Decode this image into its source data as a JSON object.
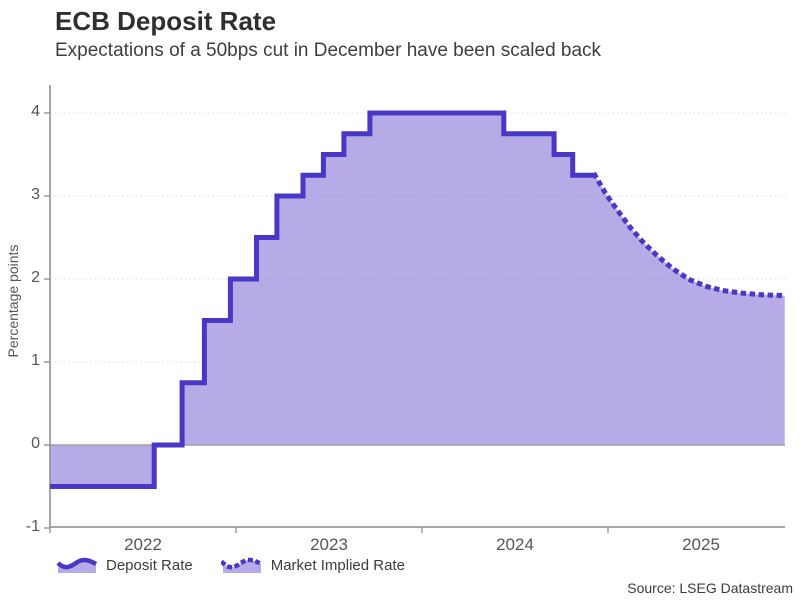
{
  "chart_data": {
    "type": "area",
    "title": "ECB Deposit Rate",
    "subtitle": "Expectations of a 50bps cut in December have been scaled back",
    "ylabel": "Percentage points",
    "ylim": [
      -1,
      4
    ],
    "x_range_years": [
      2022.0,
      2025.95
    ],
    "grid": "horizontal-dotted",
    "legend_position": "bottom-left",
    "y_ticks": [
      {
        "value": -1,
        "label": "-1"
      },
      {
        "value": 0,
        "label": "0"
      },
      {
        "value": 1,
        "label": "1"
      },
      {
        "value": 2,
        "label": "2"
      },
      {
        "value": 3,
        "label": "3"
      },
      {
        "value": 4,
        "label": "4"
      }
    ],
    "x_ticks": [
      {
        "year": 2022,
        "label": "2022"
      },
      {
        "year": 2023,
        "label": "2023"
      },
      {
        "year": 2024,
        "label": "2024"
      },
      {
        "year": 2025,
        "label": "2025"
      }
    ],
    "series": [
      {
        "name": "Deposit Rate",
        "style": "solid-step",
        "points_year_rate": [
          [
            2022.0,
            -0.5
          ],
          [
            2022.56,
            0.0
          ],
          [
            2022.71,
            0.75
          ],
          [
            2022.83,
            1.5
          ],
          [
            2022.97,
            2.0
          ],
          [
            2023.11,
            2.5
          ],
          [
            2023.22,
            3.0
          ],
          [
            2023.36,
            3.25
          ],
          [
            2023.47,
            3.5
          ],
          [
            2023.58,
            3.75
          ],
          [
            2023.72,
            4.0
          ],
          [
            2024.44,
            3.75
          ],
          [
            2024.71,
            3.5
          ],
          [
            2024.81,
            3.25
          ]
        ],
        "end_year": 2024.93
      },
      {
        "name": "Market Implied Rate",
        "style": "dotted",
        "points_year_rate": [
          [
            2024.93,
            3.25
          ],
          [
            2024.99,
            3.02
          ],
          [
            2025.05,
            2.83
          ],
          [
            2025.12,
            2.62
          ],
          [
            2025.19,
            2.44
          ],
          [
            2025.27,
            2.27
          ],
          [
            2025.35,
            2.12
          ],
          [
            2025.44,
            1.99
          ],
          [
            2025.53,
            1.91
          ],
          [
            2025.62,
            1.86
          ],
          [
            2025.72,
            1.83
          ],
          [
            2025.83,
            1.81
          ],
          [
            2025.95,
            1.8
          ]
        ]
      }
    ],
    "source": "Source: LSEG Datastream",
    "colors": {
      "line": "#4938c6",
      "area_fill_rgba": "rgba(99,77,205,0.47)",
      "grid": "#dcdcdc",
      "axis": "#8c8c8c",
      "zero_line": "#a0a0a0",
      "tick_label": "#565656",
      "title": "#2f2f2f",
      "subtitle": "#3e3e3e"
    }
  }
}
